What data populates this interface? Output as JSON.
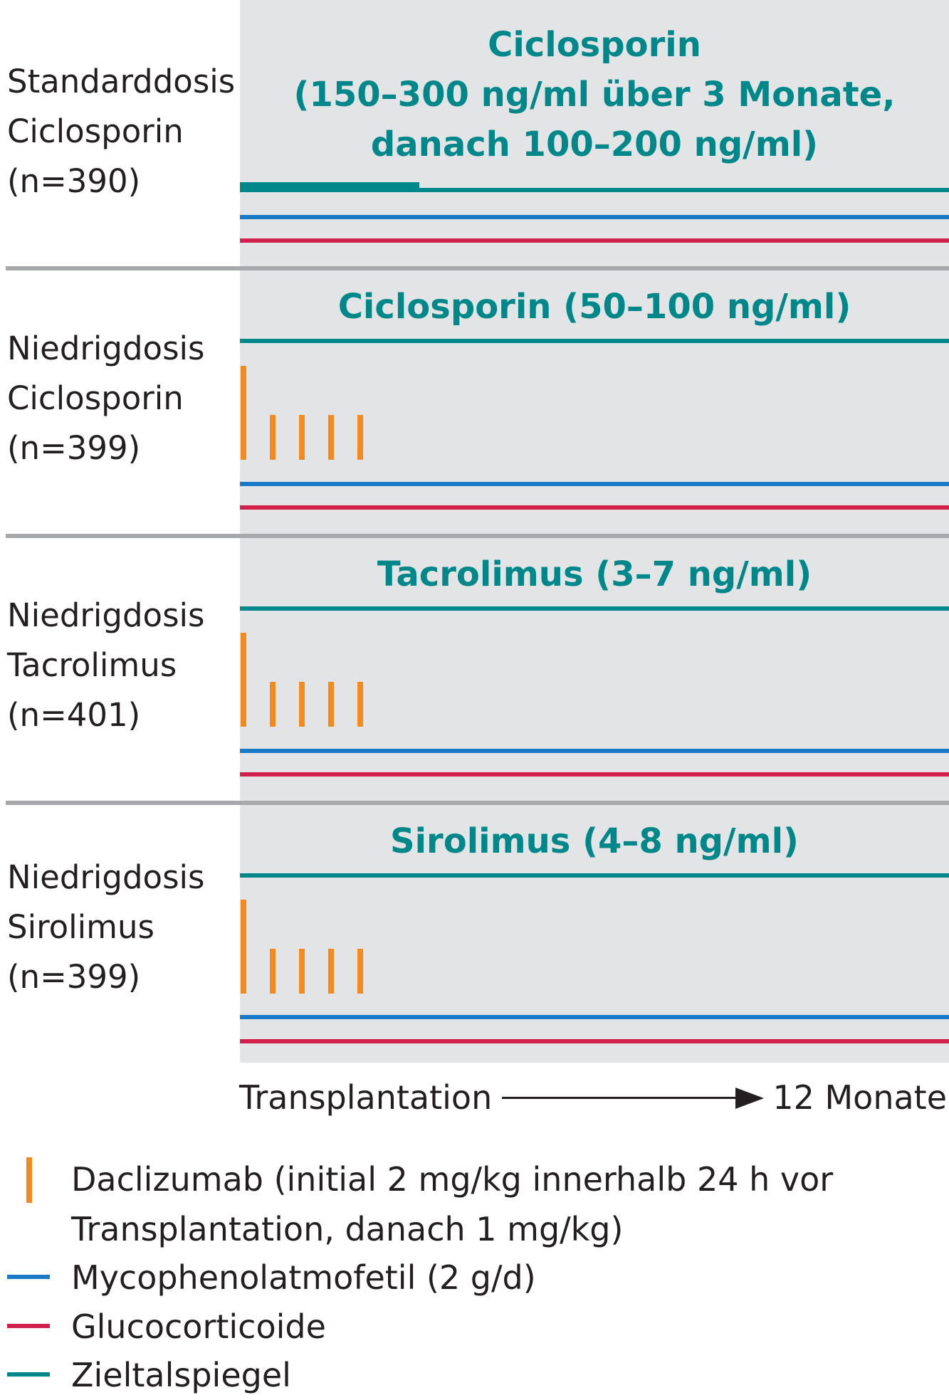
{
  "groups": [
    {
      "label": "Standarddosis\nCiclosporin\n(n=390)",
      "drug": "Ciclosporin\n(150–300 ng/ml über 3 Monate,\ndanach 100–200 ng/ml)",
      "daclizumab": false
    },
    {
      "label": "Niedrigdosis\nCiclosporin\n(n=399)",
      "drug": "Ciclosporin (50–100 ng/ml)",
      "daclizumab": true
    },
    {
      "label": "Niedrigdosis\nTacrolimus\n(n=401)",
      "drug": "Tacrolimus (3–7 ng/ml)",
      "daclizumab": true
    },
    {
      "label": "Niedrigdosis\nSirolimus\n(n=399)",
      "drug": "Sirolimus (4–8 ng/ml)",
      "daclizumab": true
    }
  ],
  "timeline": {
    "start": "Transplantation",
    "end": "12 Monate"
  },
  "legend": {
    "daclizumab": "Daclizumab (initial 2 mg/kg innerhalb 24 h vor",
    "daclizumab_line2": "Transplantation, danach 1 mg/kg)",
    "mycophenolat": "Mycophenolatmofetil (2 g/d)",
    "glucocorticoide": "Glucocorticoide",
    "zieltalspiegel": "Zieltalspiegel"
  },
  "colors": {
    "zieltalspiegel": "#00878a",
    "mycophenolat": "#1b7ac7",
    "glucocorticoide": "#d21f4b",
    "daclizumab": "#f28a20",
    "panel": "#e3e4e5",
    "separator": "#a6a8ab"
  }
}
